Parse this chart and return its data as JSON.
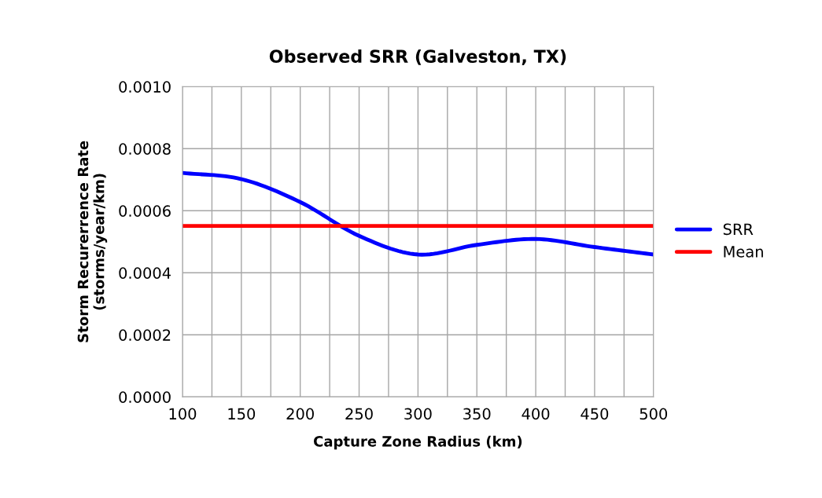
{
  "chart_data": {
    "type": "line",
    "title": "Observed SRR (Galveston, TX)",
    "xlabel": "Capture Zone Radius (km)",
    "ylabel": "Storm Recurerrence Rate\n(storms/year/km)",
    "x": [
      100,
      150,
      200,
      250,
      300,
      350,
      400,
      450,
      500
    ],
    "series": [
      {
        "name": "SRR",
        "color": "#0000ff",
        "values": [
          0.000722,
          0.000702,
          0.000628,
          0.000519,
          0.000459,
          0.00049,
          0.000509,
          0.000483,
          0.000459
        ]
      },
      {
        "name": "Mean",
        "color": "#ff0000",
        "values": [
          0.000551,
          0.000551,
          0.000551,
          0.000551,
          0.000551,
          0.000551,
          0.000551,
          0.000551,
          0.000551
        ]
      }
    ],
    "xlim": [
      100,
      500
    ],
    "xticks": [
      100,
      {
        "value": 125,
        "label": null
      },
      150,
      {
        "value": 175,
        "label": null
      },
      200,
      {
        "value": 225,
        "label": null
      },
      250,
      {
        "value": 275,
        "label": null
      },
      300,
      {
        "value": 325,
        "label": null
      },
      350,
      {
        "value": 375,
        "label": null
      },
      400,
      {
        "value": 425,
        "label": null
      },
      450,
      {
        "value": 475,
        "label": null
      },
      500
    ],
    "ylim": [
      0,
      0.001
    ],
    "yticks": [
      {
        "value": 0,
        "label": "0.0000"
      },
      {
        "value": 0.0002,
        "label": "0.0002"
      },
      {
        "value": 0.0004,
        "label": "0.0004"
      },
      {
        "value": 0.0006,
        "label": "0.0006"
      },
      {
        "value": 0.0008,
        "label": "0.0008"
      },
      {
        "value": 0.001,
        "label": "0.0010"
      }
    ],
    "grid": true,
    "legend": "right",
    "marker": "none",
    "line_style": "solid"
  }
}
